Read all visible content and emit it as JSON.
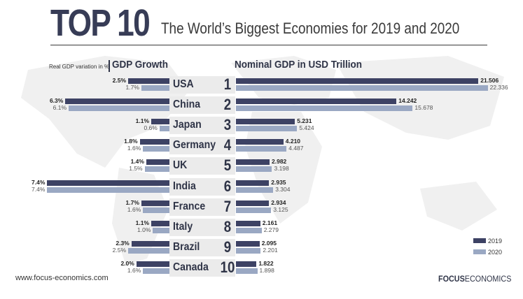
{
  "header": {
    "title": "TOP 10",
    "subtitle": "The World’s Biggest Economies for 2019 and 2020"
  },
  "left_header": {
    "note": "Real GDP variation in %",
    "title": "GDP Growth"
  },
  "right_header": {
    "title": "Nominal GDP in USD Trillion"
  },
  "legend": {
    "y2019": "2019",
    "y2020": "2020"
  },
  "footer": {
    "url": "www.focus-economics.com",
    "brand_bold": "FOCUS",
    "brand_rest": "ECONOMICS"
  },
  "colors": {
    "y2019": "#3d4264",
    "y2020": "#9aa8c3",
    "text": "#2f3447"
  },
  "chart_data": {
    "type": "bar",
    "title": "The World’s Biggest Economies for 2019 and 2020",
    "categories": [
      "USA",
      "China",
      "Japan",
      "Germany",
      "UK",
      "India",
      "France",
      "Italy",
      "Brazil",
      "Canada"
    ],
    "ranks": [
      "1",
      "2",
      "3",
      "4",
      "5",
      "6",
      "7",
      "8",
      "9",
      "10"
    ],
    "gdp_growth": {
      "title": "GDP Growth",
      "unit": "Real GDP variation in %",
      "series": [
        {
          "name": "2019",
          "values": [
            2.5,
            6.3,
            1.1,
            1.8,
            1.4,
            7.4,
            1.7,
            1.1,
            2.3,
            2.0
          ],
          "labels": [
            "2.5%",
            "6.3%",
            "1.1%",
            "1.8%",
            "1.4%",
            "7.4%",
            "1.7%",
            "1.1%",
            "2.3%",
            "2.0%"
          ]
        },
        {
          "name": "2020",
          "values": [
            1.7,
            6.1,
            0.6,
            1.6,
            1.5,
            7.4,
            1.6,
            1.0,
            2.5,
            1.6
          ],
          "labels": [
            "1.7%",
            "6.1%",
            "0.6%",
            "1.6%",
            "1.5%",
            "7.4%",
            "1.6%",
            "1.0%",
            "2.5%",
            "1.6%"
          ]
        }
      ]
    },
    "nominal_gdp": {
      "title": "Nominal GDP in USD Trillion",
      "series": [
        {
          "name": "2019",
          "values": [
            21.506,
            14.242,
            5.231,
            4.21,
            2.982,
            2.935,
            2.934,
            2.161,
            2.095,
            1.822
          ],
          "labels": [
            "21.506",
            "14.242",
            "5.231",
            "4.210",
            "2.982",
            "2.935",
            "2.934",
            "2.161",
            "2.095",
            "1.822"
          ]
        },
        {
          "name": "2020",
          "values": [
            22.336,
            15.678,
            5.424,
            4.487,
            3.198,
            3.304,
            3.125,
            2.279,
            2.201,
            1.898
          ],
          "labels": [
            "22.336",
            "15.678",
            "5.424",
            "4.487",
            "3.198",
            "3.304",
            "3.125",
            "2.279",
            "2.201",
            "1.898"
          ]
        }
      ]
    }
  }
}
